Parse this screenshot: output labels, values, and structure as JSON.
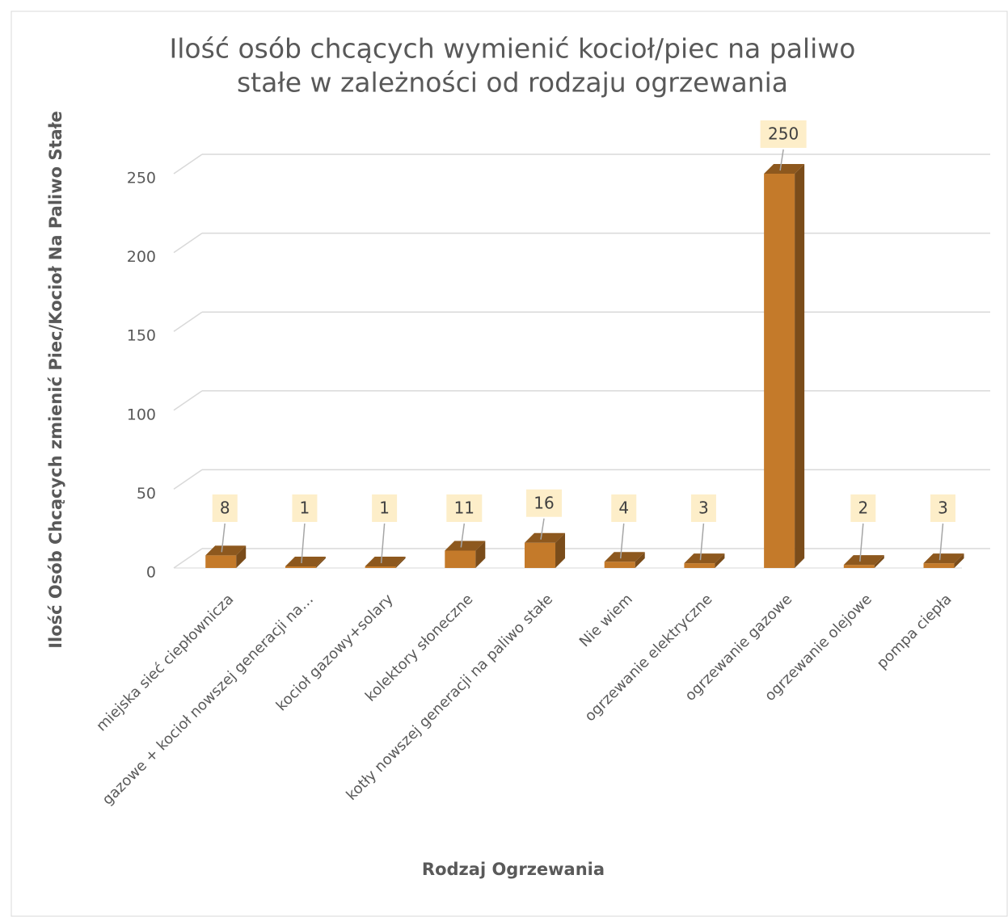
{
  "chart_data": {
    "type": "bar3d",
    "title": [
      "Ilość osób chcących wymienić kocioł/piec na paliwo",
      "stałe w zależności od rodzaju ogrzewania"
    ],
    "x_label": "Rodzaj Ogrzewania",
    "y_label": "Ilość Osób Chcących zmienić Piec/Kocioł Na Paliwo Stałe",
    "categories": [
      "miejska sieć ciepłownicza",
      "gazowe + kocioł nowszej generacji na…",
      "kocioł gazowy+solary",
      "kolektory słoneczne",
      "kotły nowszej generacji na paliwo stałe",
      "Nie wiem",
      "ogrzewanie elektryczne",
      "ogrzewanie gazowe",
      "ogrzewanie olejowe",
      "pompa ciepła"
    ],
    "values": [
      8,
      1,
      1,
      11,
      16,
      4,
      3,
      250,
      2,
      3
    ],
    "color": "#c47a2a",
    "ylim": [
      0,
      250
    ],
    "yticks": [
      0,
      50,
      100,
      150,
      200,
      250
    ],
    "grid": true
  }
}
